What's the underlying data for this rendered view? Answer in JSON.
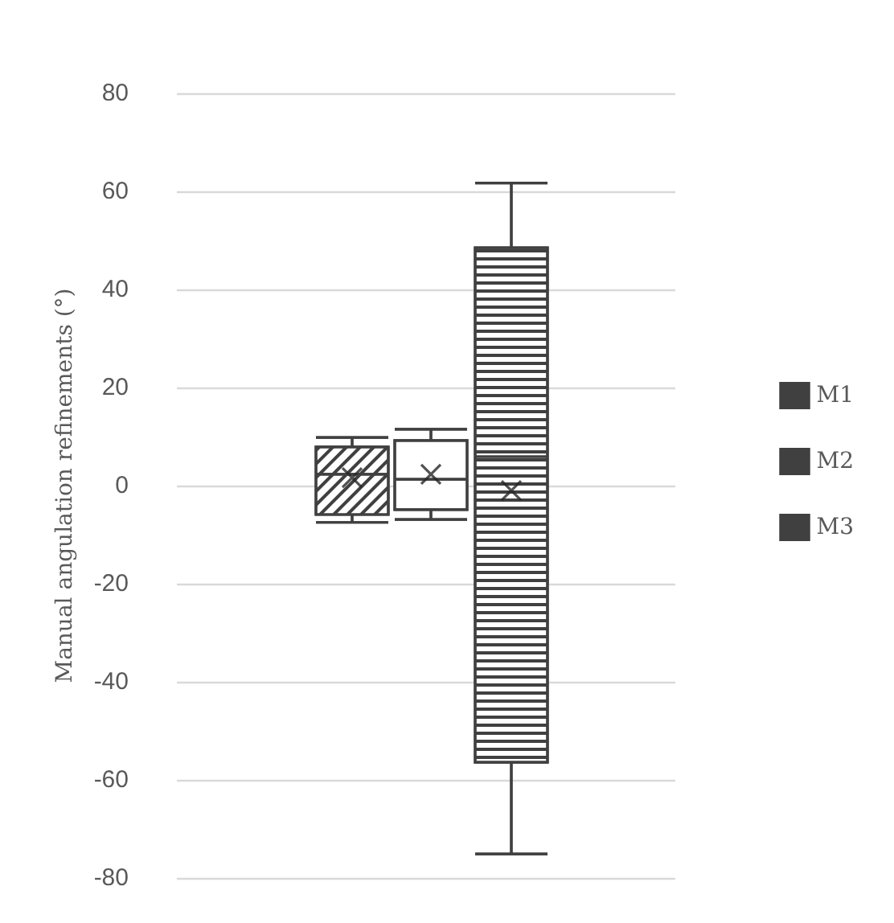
{
  "chart_data": {
    "type": "box",
    "ylabel": "Manual angulation refinements (°)",
    "categories": [
      null
    ],
    "series": [
      {
        "name": "M1",
        "color": "#404040",
        "boxes": [
          {
            "low": -7.5,
            "q1": -5.9,
            "median": 2.3,
            "q3": 7.9,
            "high": 9.8,
            "mean": 1.6
          }
        ]
      },
      {
        "name": "M2",
        "color": "#404040",
        "boxes": [
          {
            "low": -6.9,
            "q1": -4.9,
            "median": 1.3,
            "q3": 9.2,
            "high": 11.5,
            "mean": 2.3
          }
        ]
      },
      {
        "name": "M3",
        "color": "#404040",
        "boxes": [
          {
            "low": -75.1,
            "q1": -56.4,
            "median": 5.9,
            "q3": 48.5,
            "high": 61.7,
            "mean": -1
          }
        ]
      }
    ],
    "ylim": [
      -80,
      80
    ],
    "yticks": [
      -80,
      -60,
      -40,
      -20,
      0,
      20,
      40,
      60,
      80
    ],
    "grid": "y",
    "legend": "right"
  }
}
